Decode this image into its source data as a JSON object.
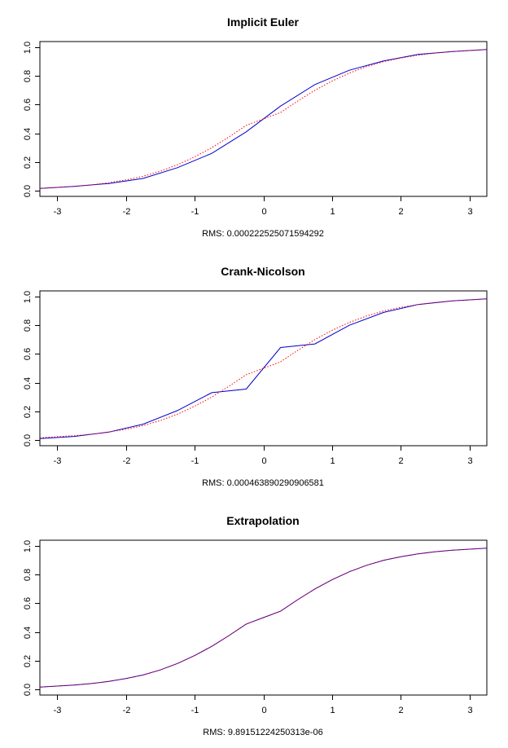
{
  "chart_data": [
    {
      "type": "line",
      "title": "Implicit Euler",
      "xlabel": "RMS:  0.000222525071594292",
      "ylabel": "",
      "xlim": [
        -3.25,
        3.25
      ],
      "ylim": [
        -0.04,
        1.04
      ],
      "xticks": [
        -3,
        -2,
        -1,
        0,
        1,
        2,
        3
      ],
      "yticks": [
        0.0,
        0.2,
        0.4,
        0.6,
        0.8,
        1.0
      ],
      "ytick_labels": [
        "0.0",
        "0.2",
        "0.4",
        "0.6",
        "0.8",
        "1.0"
      ],
      "grid": false,
      "series": [
        {
          "color": "#0000cc",
          "style": "solid",
          "x": [
            -3.25,
            -2.75,
            -2.25,
            -1.75,
            -1.25,
            -0.75,
            -0.25,
            0.25,
            0.75,
            1.25,
            1.75,
            2.25,
            2.75,
            3.25
          ],
          "y": [
            0.015,
            0.03,
            0.05,
            0.085,
            0.16,
            0.26,
            0.41,
            0.59,
            0.74,
            0.84,
            0.905,
            0.95,
            0.97,
            0.985
          ]
        },
        {
          "color": "#ff0000",
          "style": "dotted",
          "x": [
            -3.25,
            -2.75,
            -2.5,
            -2.25,
            -2.0,
            -1.75,
            -1.5,
            -1.25,
            -1.0,
            -0.75,
            -0.5,
            -0.25,
            0.0,
            0.25,
            0.5,
            0.75,
            1.0,
            1.25,
            1.5,
            1.75,
            2.0,
            2.25,
            2.5,
            2.75,
            3.25
          ],
          "y": [
            0.015,
            0.03,
            0.04,
            0.055,
            0.075,
            0.1,
            0.135,
            0.18,
            0.235,
            0.3,
            0.375,
            0.455,
            0.5,
            0.545,
            0.625,
            0.7,
            0.765,
            0.82,
            0.865,
            0.9,
            0.925,
            0.945,
            0.96,
            0.97,
            0.985
          ]
        }
      ]
    },
    {
      "type": "line",
      "title": "Crank-Nicolson",
      "xlabel": "RMS:  0.000463890290906581",
      "ylabel": "",
      "xlim": [
        -3.25,
        3.25
      ],
      "ylim": [
        -0.04,
        1.04
      ],
      "xticks": [
        -3,
        -2,
        -1,
        0,
        1,
        2,
        3
      ],
      "yticks": [
        0.0,
        0.2,
        0.4,
        0.6,
        0.8,
        1.0
      ],
      "ytick_labels": [
        "0.0",
        "0.2",
        "0.4",
        "0.6",
        "0.8",
        "1.0"
      ],
      "grid": false,
      "series": [
        {
          "color": "#0000cc",
          "style": "solid",
          "x": [
            -3.25,
            -2.75,
            -2.25,
            -1.75,
            -1.25,
            -0.75,
            -0.25,
            0.25,
            0.75,
            1.25,
            1.75,
            2.25,
            2.75,
            3.25
          ],
          "y": [
            0.01,
            0.025,
            0.055,
            0.11,
            0.205,
            0.33,
            0.355,
            0.645,
            0.67,
            0.8,
            0.89,
            0.945,
            0.97,
            0.985
          ]
        },
        {
          "color": "#ff0000",
          "style": "dotted",
          "x": [
            -3.25,
            -2.75,
            -2.5,
            -2.25,
            -2.0,
            -1.75,
            -1.5,
            -1.25,
            -1.0,
            -0.75,
            -0.5,
            -0.25,
            0.0,
            0.25,
            0.5,
            0.75,
            1.0,
            1.25,
            1.5,
            1.75,
            2.0,
            2.25,
            2.5,
            2.75,
            3.25
          ],
          "y": [
            0.015,
            0.03,
            0.04,
            0.055,
            0.075,
            0.1,
            0.135,
            0.18,
            0.235,
            0.3,
            0.375,
            0.455,
            0.5,
            0.545,
            0.625,
            0.7,
            0.765,
            0.82,
            0.865,
            0.9,
            0.925,
            0.945,
            0.96,
            0.97,
            0.985
          ]
        }
      ]
    },
    {
      "type": "line",
      "title": "Extrapolation",
      "xlabel": "RMS:  9.89151224250313e-06",
      "ylabel": "",
      "xlim": [
        -3.25,
        3.25
      ],
      "ylim": [
        -0.04,
        1.04
      ],
      "xticks": [
        -3,
        -2,
        -1,
        0,
        1,
        2,
        3
      ],
      "yticks": [
        0.0,
        0.2,
        0.4,
        0.6,
        0.8,
        1.0
      ],
      "ytick_labels": [
        "0.0",
        "0.2",
        "0.4",
        "0.6",
        "0.8",
        "1.0"
      ],
      "grid": false,
      "series": [
        {
          "color": "#0000cc",
          "style": "solid",
          "x": [
            -3.25,
            -2.75,
            -2.5,
            -2.25,
            -2.0,
            -1.75,
            -1.5,
            -1.25,
            -1.0,
            -0.75,
            -0.5,
            -0.25,
            0.0,
            0.25,
            0.5,
            0.75,
            1.0,
            1.25,
            1.5,
            1.75,
            2.0,
            2.25,
            2.5,
            2.75,
            3.25
          ],
          "y": [
            0.015,
            0.03,
            0.04,
            0.055,
            0.075,
            0.1,
            0.135,
            0.18,
            0.235,
            0.3,
            0.375,
            0.455,
            0.5,
            0.545,
            0.625,
            0.7,
            0.765,
            0.82,
            0.865,
            0.9,
            0.925,
            0.945,
            0.96,
            0.97,
            0.985
          ]
        },
        {
          "color": "#ff0000",
          "style": "dotted",
          "x": [
            -3.25,
            -2.75,
            -2.5,
            -2.25,
            -2.0,
            -1.75,
            -1.5,
            -1.25,
            -1.0,
            -0.75,
            -0.5,
            -0.25,
            0.0,
            0.25,
            0.5,
            0.75,
            1.0,
            1.25,
            1.5,
            1.75,
            2.0,
            2.25,
            2.5,
            2.75,
            3.25
          ],
          "y": [
            0.015,
            0.03,
            0.04,
            0.055,
            0.075,
            0.1,
            0.135,
            0.18,
            0.235,
            0.3,
            0.375,
            0.455,
            0.5,
            0.545,
            0.625,
            0.7,
            0.765,
            0.82,
            0.865,
            0.9,
            0.925,
            0.945,
            0.96,
            0.97,
            0.985
          ]
        }
      ]
    }
  ]
}
